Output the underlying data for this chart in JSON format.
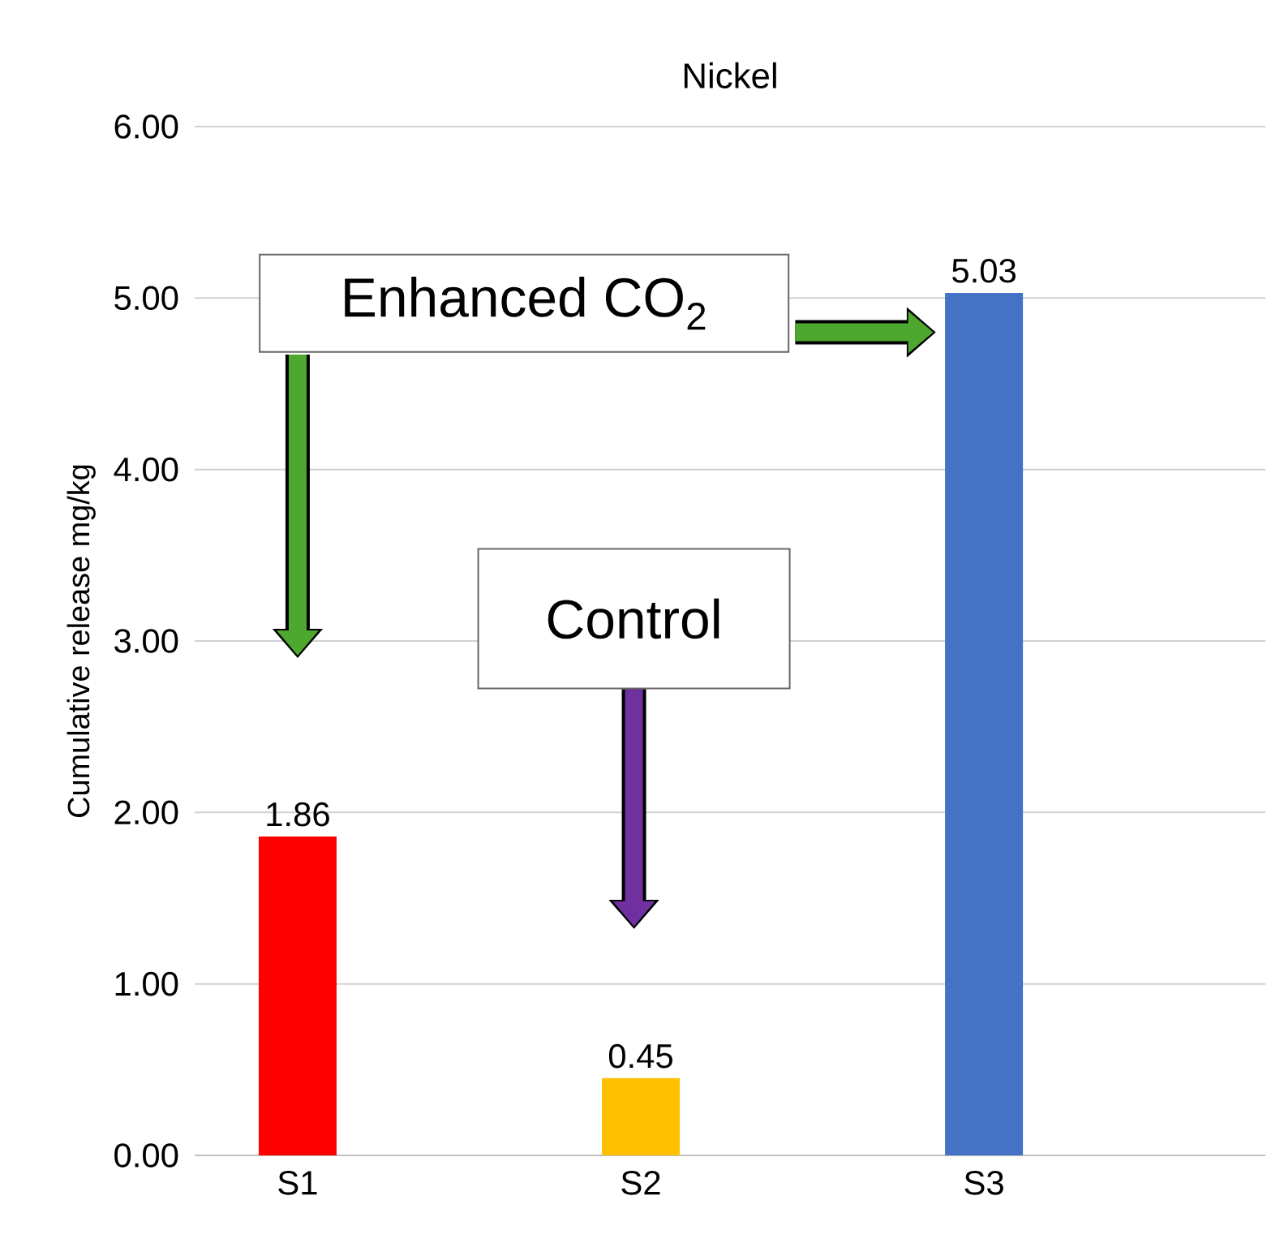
{
  "chart_data": {
    "type": "bar",
    "title": "Nickel",
    "ylabel": "Cumulative release mg/kg",
    "categories": [
      "S1",
      "S2",
      "S3"
    ],
    "values": [
      1.86,
      0.45,
      5.03
    ],
    "colors": [
      "#ff0000",
      "#ffc000",
      "#4472c4"
    ],
    "ylim": [
      0,
      6
    ],
    "yticks": [
      {
        "value": 0,
        "label": "0.00"
      },
      {
        "value": 1,
        "label": "1.00"
      },
      {
        "value": 2,
        "label": "2.00"
      },
      {
        "value": 3,
        "label": "3.00"
      },
      {
        "value": 4,
        "label": "4.00"
      },
      {
        "value": 5,
        "label": "5.00"
      },
      {
        "value": 6,
        "label": "6.00"
      }
    ],
    "grid": "y",
    "data_labels": true,
    "annotations": [
      "Enhanced CO$_{2}$",
      "Control"
    ]
  }
}
